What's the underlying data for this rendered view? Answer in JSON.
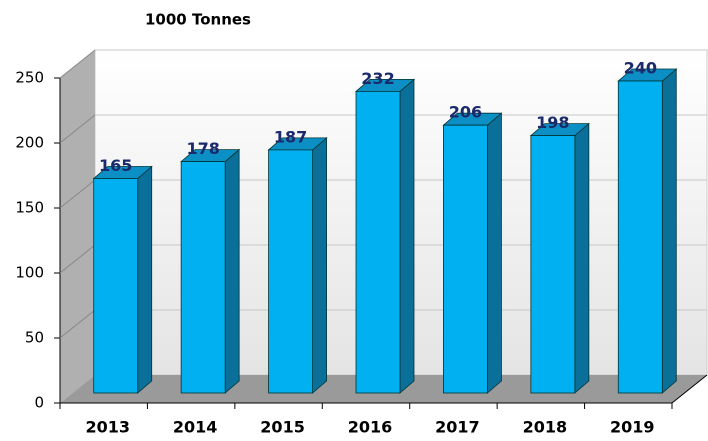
{
  "chart_data": {
    "type": "bar",
    "title": "1000 Tonnes",
    "categories": [
      "2013",
      "2014",
      "2015",
      "2016",
      "2017",
      "2018",
      "2019"
    ],
    "values": [
      165,
      178,
      187,
      232,
      206,
      198,
      240
    ],
    "color": "#00b0f0",
    "ylim": [
      0,
      250
    ],
    "yticks": [
      0,
      50,
      100,
      150,
      200,
      250
    ],
    "grid": true
  }
}
